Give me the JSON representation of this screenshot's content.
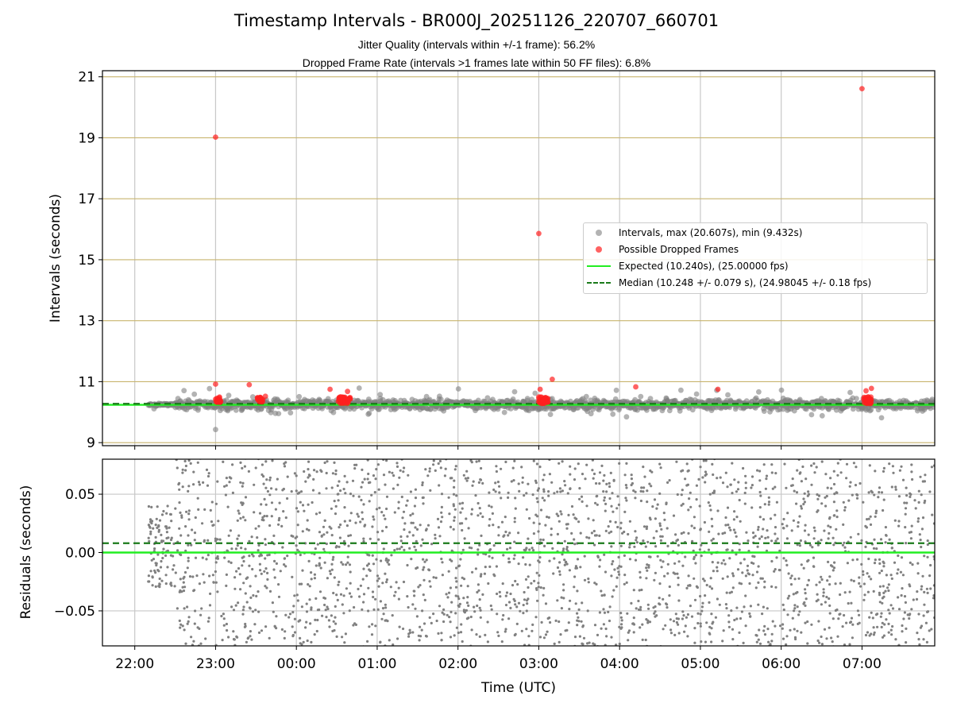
{
  "header": {
    "title": "Timestamp Intervals - BR000J_20251126_220707_660701",
    "subtitle_1": "Jitter Quality (intervals within +/-1 frame): 56.2%",
    "subtitle_2": "Dropped Frame Rate (intervals >1 frames late within 50 FF files): 6.8%"
  },
  "colors": {
    "intervals": "#808080",
    "dropped": "#ff2020",
    "expected": "#22ee22",
    "median": "#1a7a1a",
    "hgrid_top": "#c8b46e",
    "grid": "#c8c8c8"
  },
  "chart_data": [
    {
      "type": "scatter",
      "title": "",
      "xlabel": "",
      "ylabel": "Intervals (seconds)",
      "x_ticks": [
        "22:00",
        "23:00",
        "00:00",
        "01:00",
        "02:00",
        "03:00",
        "04:00",
        "05:00",
        "06:00",
        "07:00"
      ],
      "x_range_hours": [
        21.6,
        31.9
      ],
      "ylim": [
        8.9,
        21.2
      ],
      "y_ticks": [
        9,
        11,
        13,
        15,
        17,
        19,
        21
      ],
      "grid": true,
      "legend_position": "right",
      "series": [
        {
          "name": "Intervals, max (20.607s), min (9.432s)",
          "kind": "scatter",
          "y_center": 10.248,
          "y_spread": 0.079
        },
        {
          "name": "Possible Dropped Frames",
          "kind": "scatter",
          "points": [
            {
              "t": "23:00",
              "y": 19.02
            },
            {
              "t": "03:00",
              "y": 15.86
            },
            {
              "t": "07:00",
              "y": 20.61
            },
            {
              "t": "23:00",
              "y": 10.92
            },
            {
              "t": "23:25",
              "y": 10.9
            },
            {
              "t": "23:37",
              "y": 10.52
            },
            {
              "t": "00:25",
              "y": 10.75
            },
            {
              "t": "00:38",
              "y": 10.68
            },
            {
              "t": "03:01",
              "y": 10.75
            },
            {
              "t": "03:10",
              "y": 11.08
            },
            {
              "t": "04:12",
              "y": 10.83
            },
            {
              "t": "05:13",
              "y": 10.75
            },
            {
              "t": "07:03",
              "y": 10.7
            },
            {
              "t": "07:07",
              "y": 10.78
            }
          ]
        },
        {
          "name": "Expected (10.240s), (25.00000 fps)",
          "kind": "line",
          "y": 10.24
        },
        {
          "name": "Median (10.248 +/- 0.079 s), (24.98045 +/- 0.18 fps)",
          "kind": "dashed",
          "y": 10.248
        }
      ]
    },
    {
      "type": "scatter",
      "title": "",
      "xlabel": "Time (UTC)",
      "ylabel": "Residuals (seconds)",
      "x_ticks": [
        "22:00",
        "23:00",
        "00:00",
        "01:00",
        "02:00",
        "03:00",
        "04:00",
        "05:00",
        "06:00",
        "07:00"
      ],
      "x_range_hours": [
        21.6,
        31.9
      ],
      "ylim": [
        -0.08,
        0.08
      ],
      "y_ticks": [
        "−0.05",
        "0.00",
        "0.05"
      ],
      "grid": true,
      "series": [
        {
          "name": "",
          "kind": "scatter",
          "y_range": [
            -0.08,
            0.08
          ]
        },
        {
          "name": "",
          "kind": "line",
          "y": 0.0
        },
        {
          "name": "",
          "kind": "dashed",
          "y": 0.008
        }
      ]
    }
  ]
}
